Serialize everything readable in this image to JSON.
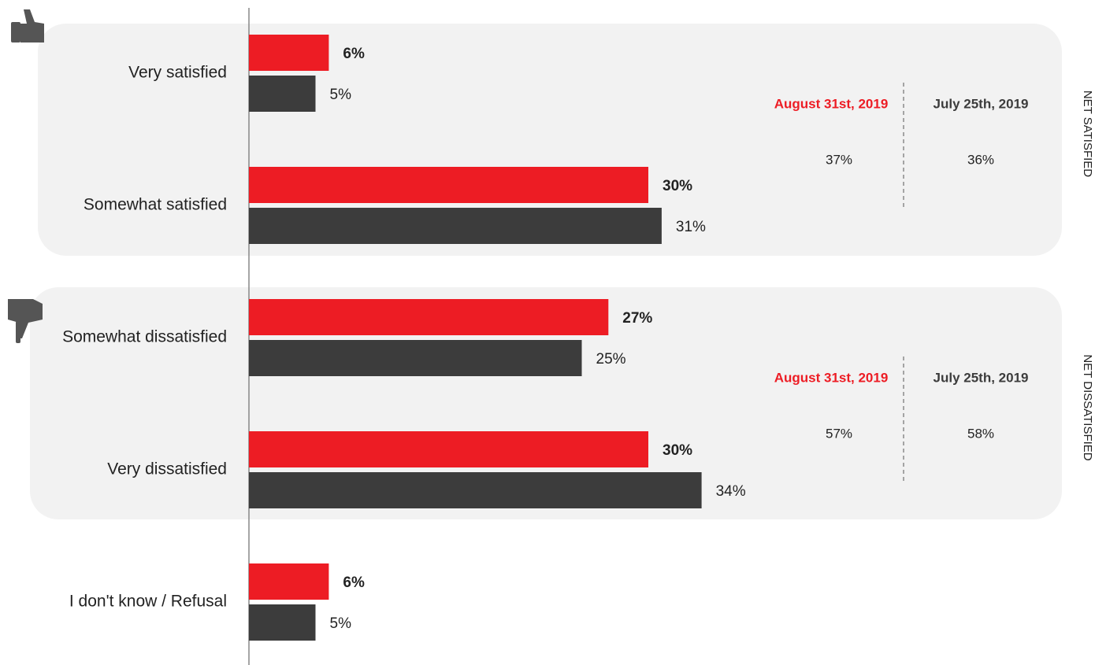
{
  "chart_data": {
    "type": "hbar",
    "categories": [
      "Very satisfied",
      "Somewhat satisfied",
      "Somewhat dissatisfied",
      "Very dissatisfied",
      "I don't know / Refusal"
    ],
    "series": [
      {
        "name": "August 31st, 2019",
        "color": "#ed1c24",
        "values": [
          6,
          30,
          27,
          30,
          6
        ],
        "value_labels": [
          "6%",
          "30%",
          "27%",
          "30%",
          "6%"
        ]
      },
      {
        "name": "July 25th, 2019",
        "color": "#3c3c3c",
        "values": [
          5,
          31,
          25,
          34,
          5
        ],
        "value_labels": [
          "5%",
          "31%",
          "25%",
          "34%",
          "5%"
        ]
      }
    ],
    "xlim": [
      0,
      40
    ],
    "net_groups": [
      {
        "label": "NET SATISFIED",
        "values": [
          37,
          36
        ],
        "value_labels": [
          "37%",
          "36%"
        ]
      },
      {
        "label": "NET DISSATISFIED",
        "values": [
          57,
          58
        ],
        "value_labels": [
          "57%",
          "58%"
        ]
      }
    ]
  }
}
